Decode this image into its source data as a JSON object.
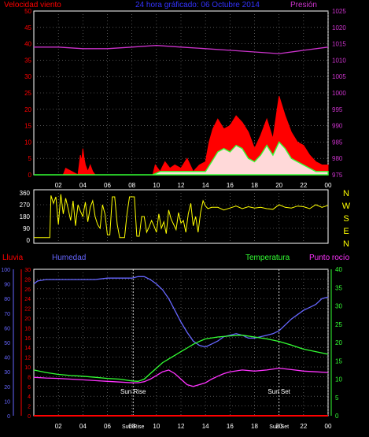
{
  "colors": {
    "wind": "#ff0000",
    "gust": "#ff0000",
    "wind_avg_green": "#33ff33",
    "wind_avg_white": "#ffffff",
    "pressure": "#cc33cc",
    "title": "#3333ff",
    "direction": "#ffff00",
    "humidity": "#6666ff",
    "temperature": "#33ff33",
    "dewpoint": "#ff33ff",
    "rain": "#ff0000",
    "grid": "#888888",
    "axis_text": "#ffffff"
  },
  "chart_data": [
    {
      "id": "wind_pressure",
      "type": "area",
      "title": "24 hora gráficado: 06 Octubre 2014",
      "left_label": "Velocidad viento",
      "right_label": "Presión",
      "x_ticks": [
        "02",
        "04",
        "06",
        "08",
        "10",
        "12",
        "14",
        "16",
        "18",
        "20",
        "22",
        "00"
      ],
      "x_range": [
        0,
        24
      ],
      "y_left_ticks": [
        "0",
        "5",
        "10",
        "15",
        "20",
        "25",
        "30",
        "35",
        "40",
        "45",
        "50"
      ],
      "y_left_range": [
        0,
        50
      ],
      "y_right_ticks": [
        "975",
        "980",
        "985",
        "990",
        "995",
        "1000",
        "1005",
        "1010",
        "1015",
        "1020",
        "1025"
      ],
      "y_right_range": [
        975,
        1025
      ],
      "grid": true,
      "series": [
        {
          "key": "gust",
          "x": [
            0,
            2.4,
            2.6,
            3.6,
            3.7,
            3.8,
            3.9,
            4.0,
            4.1,
            4.2,
            4.4,
            4.6,
            4.8,
            5.0,
            9.7,
            9.9,
            10.3,
            10.7,
            11.1,
            11.5,
            12.0,
            12.5,
            13.0,
            13.5,
            14.0,
            14.3,
            14.6,
            15.0,
            15.5,
            16.0,
            16.5,
            17.0,
            17.5,
            18.0,
            18.5,
            19.0,
            19.5,
            20.0,
            20.5,
            21.0,
            21.5,
            22.0,
            22.5,
            23.0,
            23.5,
            24.0
          ],
          "values": [
            0,
            0,
            2,
            0,
            3,
            6,
            4,
            8,
            5,
            3,
            1,
            3,
            1,
            0,
            0,
            3,
            1,
            4,
            2,
            3,
            2,
            5,
            1,
            3,
            4,
            10,
            14,
            17,
            14,
            15,
            18,
            16,
            13,
            8,
            12,
            17,
            11,
            24,
            18,
            13,
            10,
            9,
            6,
            4,
            3,
            3
          ]
        },
        {
          "key": "wind_avg",
          "x": [
            0,
            9.7,
            10.3,
            11.0,
            12.0,
            13.0,
            14.0,
            14.5,
            15.0,
            15.5,
            16.0,
            16.5,
            17.0,
            17.5,
            18.0,
            18.5,
            19.0,
            19.5,
            20.0,
            20.5,
            21.0,
            21.5,
            22.0,
            23.0,
            24.0
          ],
          "values": [
            0,
            0,
            1,
            1,
            1,
            1,
            1,
            4,
            7,
            8,
            7,
            9,
            8,
            5,
            4,
            6,
            9,
            6,
            10,
            8,
            5,
            4,
            3,
            1,
            1
          ]
        },
        {
          "key": "pressure",
          "x": [
            0,
            2,
            4,
            6,
            8,
            10,
            12,
            14,
            16,
            18,
            20,
            22,
            24
          ],
          "values": [
            1014,
            1014,
            1013.5,
            1013.5,
            1014,
            1014.5,
            1014,
            1013.5,
            1013,
            1012.5,
            1012,
            1013,
            1014
          ]
        }
      ]
    },
    {
      "id": "wind_direction",
      "type": "line",
      "x_range": [
        0,
        24
      ],
      "y_ticks": [
        "360",
        "270",
        "180",
        "90",
        "0"
      ],
      "y_range": [
        0,
        360
      ],
      "compass": [
        "N",
        "W",
        "S",
        "E",
        "N"
      ],
      "series": [
        {
          "key": "direction",
          "x": [
            0,
            1.3,
            1.4,
            1.6,
            1.8,
            2.0,
            2.2,
            2.4,
            2.6,
            2.8,
            3.0,
            3.2,
            3.4,
            3.6,
            3.8,
            4.0,
            4.2,
            4.4,
            4.6,
            4.8,
            5.0,
            5.2,
            5.4,
            5.6,
            5.8,
            6.0,
            6.2,
            6.4,
            6.6,
            6.8,
            7.0,
            7.2,
            7.4,
            7.6,
            7.8,
            8.0,
            8.2,
            8.4,
            8.6,
            8.8,
            9.0,
            9.2,
            9.4,
            9.6,
            9.8,
            10.0,
            10.2,
            10.4,
            10.6,
            10.8,
            11.0,
            11.2,
            11.4,
            11.6,
            11.8,
            12.0,
            12.2,
            12.4,
            12.6,
            12.8,
            13.0,
            13.2,
            13.4,
            13.6,
            13.8,
            14.0,
            14.2,
            14.5,
            15,
            15.5,
            16,
            16.5,
            17,
            17.5,
            18,
            18.5,
            19,
            19.5,
            20,
            20.5,
            21,
            21.5,
            22,
            22.5,
            23,
            23.5,
            24
          ],
          "values": [
            20,
            20,
            340,
            280,
            330,
            120,
            350,
            200,
            320,
            240,
            150,
            300,
            110,
            270,
            220,
            180,
            290,
            140,
            250,
            300,
            180,
            120,
            90,
            270,
            200,
            40,
            40,
            330,
            330,
            120,
            20,
            20,
            20,
            200,
            330,
            330,
            330,
            30,
            30,
            180,
            180,
            60,
            100,
            150,
            110,
            60,
            200,
            90,
            140,
            50,
            230,
            160,
            120,
            80,
            210,
            130,
            150,
            60,
            200,
            280,
            110,
            180,
            60,
            210,
            300,
            260,
            240,
            250,
            250,
            230,
            245,
            260,
            240,
            255,
            245,
            250,
            240,
            235,
            270,
            250,
            245,
            260,
            255,
            240,
            270,
            250,
            265
          ]
        }
      ]
    },
    {
      "id": "temp_humidity",
      "type": "line",
      "left_outer_label": "Lluvia",
      "left_inner_label": "Humedad",
      "right_labels": [
        "Temperatura",
        "Punto rocío"
      ],
      "x_ticks": [
        "02",
        "04",
        "06",
        "08",
        "10",
        "12",
        "14",
        "16",
        "18",
        "20",
        "22",
        "00"
      ],
      "x_range": [
        0,
        24
      ],
      "y_humidity_ticks": [
        "0",
        "10",
        "20",
        "30",
        "40",
        "50",
        "60",
        "70",
        "80",
        "90",
        "100"
      ],
      "y_humidity_range": [
        0,
        100
      ],
      "y_rain_ticks": [
        "0",
        "2",
        "4",
        "6",
        "8",
        "10",
        "12",
        "14",
        "16",
        "18",
        "20",
        "22",
        "24",
        "26",
        "28",
        "30"
      ],
      "y_rain_range": [
        0,
        30
      ],
      "y_temp_ticks": [
        "0",
        "5",
        "10",
        "15",
        "20",
        "25",
        "30",
        "35",
        "40"
      ],
      "y_temp_range": [
        0,
        40
      ],
      "annotations": [
        {
          "label": "Sun Rise",
          "axis_label": "Sun Rise",
          "x": 8.1
        },
        {
          "label": "Sun Set",
          "axis_label": "Sun Set",
          "x": 20.0
        }
      ],
      "grid": true,
      "series": [
        {
          "key": "humidity",
          "x": [
            0,
            0.3,
            1,
            2,
            3,
            4,
            5,
            6,
            7,
            8,
            8.5,
            9,
            9.5,
            10,
            10.5,
            11,
            11.5,
            12,
            12.5,
            13,
            13.5,
            14,
            14.5,
            15,
            15.5,
            16,
            16.5,
            17,
            17.5,
            18,
            18.5,
            19,
            19.5,
            20,
            20.5,
            21,
            21.5,
            22,
            22.5,
            23,
            23.5,
            24
          ],
          "values": [
            90,
            92,
            93,
            93,
            93,
            93,
            93,
            94,
            94,
            94,
            95,
            95,
            93,
            90,
            86,
            80,
            72,
            64,
            57,
            51,
            48,
            47,
            49,
            51,
            54,
            55,
            56,
            55,
            53,
            53,
            54,
            55,
            56,
            58,
            62,
            66,
            69,
            72,
            74,
            76,
            80,
            81
          ]
        },
        {
          "key": "temperature",
          "x": [
            0,
            1,
            2,
            3,
            4,
            5,
            6,
            7,
            8,
            8.5,
            9,
            9.5,
            10,
            10.5,
            11,
            11.5,
            12,
            12.5,
            13,
            13.5,
            14,
            15,
            16,
            17,
            18,
            19,
            20,
            21,
            22,
            23,
            24
          ],
          "values": [
            12.5,
            11.8,
            11.3,
            11,
            10.8,
            10.5,
            10.2,
            10,
            9.5,
            9.4,
            10,
            11.5,
            13,
            14.5,
            15.5,
            16.5,
            17.5,
            18.5,
            19.5,
            20.3,
            21,
            21.5,
            21.8,
            22,
            21.5,
            21,
            20.3,
            19.3,
            18.2,
            17.5,
            16.8
          ]
        },
        {
          "key": "dewpoint",
          "x": [
            0,
            1,
            2,
            3,
            4,
            5,
            6,
            7,
            8,
            8.5,
            9,
            9.5,
            10,
            10.5,
            11,
            11.5,
            12,
            12.5,
            13,
            13.5,
            14,
            14.5,
            15,
            15.5,
            16,
            17,
            18,
            19,
            20,
            21,
            22,
            23,
            24
          ],
          "values": [
            10.5,
            10.3,
            10.2,
            10,
            9.8,
            9.6,
            9.4,
            9.2,
            9,
            9,
            9.3,
            10,
            11,
            12,
            12.5,
            11.5,
            10,
            8.5,
            8,
            8.5,
            9,
            10,
            10.8,
            11.5,
            12,
            12.5,
            12.2,
            12.5,
            13,
            12.6,
            12.2,
            12,
            11.8
          ]
        },
        {
          "key": "rain",
          "x": [
            0,
            24
          ],
          "values": [
            0,
            0
          ]
        }
      ]
    }
  ]
}
